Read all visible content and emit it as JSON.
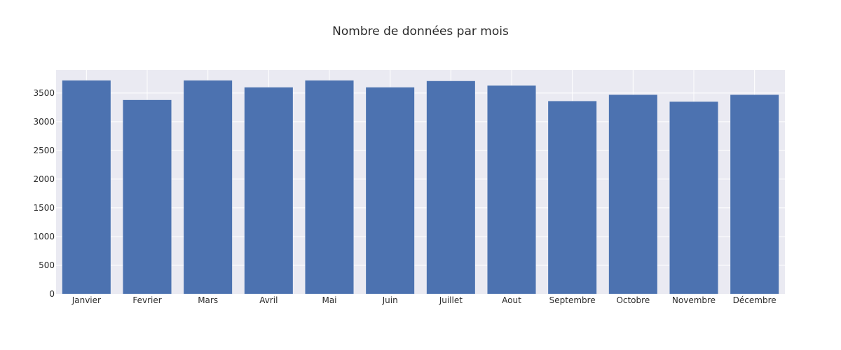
{
  "chart_data": {
    "type": "bar",
    "title": "Nombre de données par mois",
    "xlabel": "",
    "ylabel": "",
    "categories": [
      "Janvier",
      "Fevrier",
      "Mars",
      "Avril",
      "Mai",
      "Juin",
      "Juillet",
      "Aout",
      "Septembre",
      "Octobre",
      "Novembre",
      "Décembre"
    ],
    "values": [
      3720,
      3380,
      3720,
      3600,
      3720,
      3600,
      3710,
      3630,
      3360,
      3470,
      3350,
      3470
    ],
    "ylim": [
      0,
      3900
    ],
    "yticks": [
      0,
      500,
      1000,
      1500,
      2000,
      2500,
      3000,
      3500
    ],
    "ytick_labels": [
      "0",
      "500",
      "1000",
      "1500",
      "2000",
      "2500",
      "3000",
      "3500"
    ],
    "grid": true,
    "legend": "none"
  },
  "colors": {
    "bar": "#4c72b0",
    "plot_background": "#eaeaf2",
    "grid": "#ffffff"
  }
}
